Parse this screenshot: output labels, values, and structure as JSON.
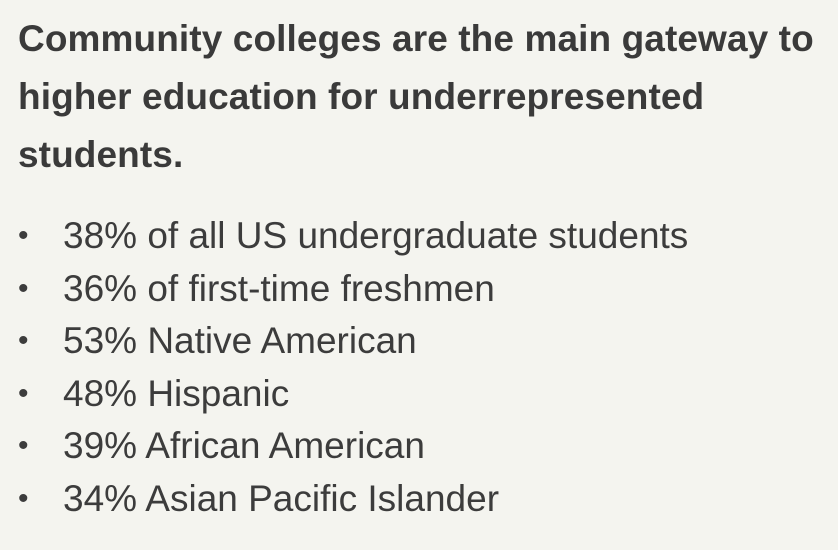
{
  "slide": {
    "heading": "Community colleges are the main gateway to higher education for underrepresented students.",
    "bullet_glyph": "•",
    "bullets": [
      "38% of all US undergraduate students",
      "36% of first-time freshmen",
      "53% Native American",
      "48% Hispanic",
      "39% African American",
      "34% Asian Pacific Islander"
    ]
  }
}
